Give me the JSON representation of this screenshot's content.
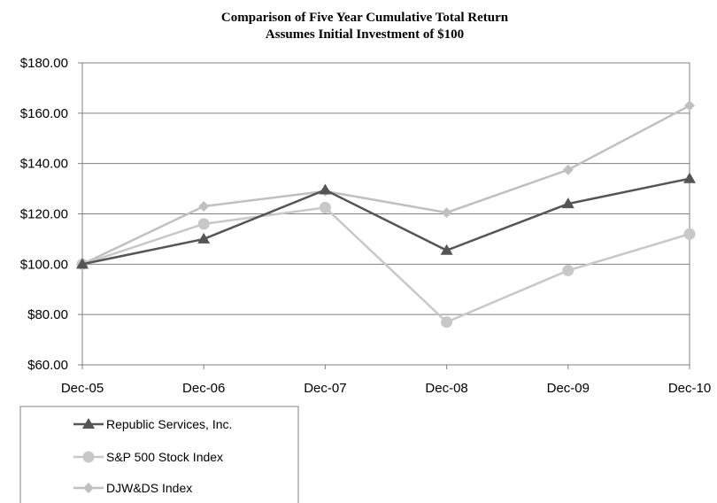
{
  "chart_data": {
    "type": "line",
    "title": "Comparison of Five Year Cumulative Total Return",
    "subtitle": "Assumes Initial Investment of $100",
    "x": [
      "Dec-05",
      "Dec-06",
      "Dec-07",
      "Dec-08",
      "Dec-09",
      "Dec-10"
    ],
    "ylim": [
      60,
      180
    ],
    "yticks": [
      "$60.00",
      "$80.00",
      "$100.00",
      "$120.00",
      "$140.00",
      "$160.00",
      "$180.00"
    ],
    "ytick_values": [
      60,
      80,
      100,
      120,
      140,
      160,
      180
    ],
    "grid": true,
    "legend_position": "bottom-left",
    "series": [
      {
        "name": "Republic Services, Inc.",
        "values": [
          100,
          110,
          129.5,
          105.5,
          124,
          134
        ],
        "color": "#555555",
        "marker": "triangle"
      },
      {
        "name": "S&P 500 Stock Index",
        "values": [
          100,
          116,
          122.5,
          77,
          97.5,
          112
        ],
        "color": "#c8c8c8",
        "marker": "circle"
      },
      {
        "name": "DJW&DS Index",
        "values": [
          100,
          123,
          129,
          120.5,
          137.5,
          163
        ],
        "color": "#c0c0c0",
        "marker": "diamond"
      }
    ]
  }
}
